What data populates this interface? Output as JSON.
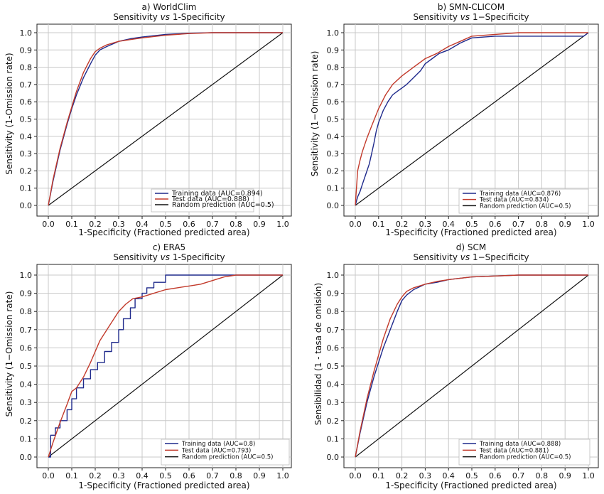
{
  "chart_data": [
    {
      "type": "line",
      "panel": "a",
      "title": "a) WorldClim",
      "subtitle_pre": "Sensitivity ",
      "subtitle_em": "vs",
      "subtitle_post": " 1-Specificity",
      "xlabel": "1-Specificity (Fractioned predicted area)",
      "ylabel": "Sensitivity (1-Omission rate)",
      "xlim": [
        0,
        1
      ],
      "ylim": [
        0,
        1
      ],
      "ticks": [
        "0.0",
        "0.1",
        "0.2",
        "0.3",
        "0.4",
        "0.5",
        "0.6",
        "0.7",
        "0.8",
        "0.9",
        "1.0"
      ],
      "legend_position": "lower-right",
      "series": [
        {
          "name": "Training data (AUC=0.894)",
          "color": "#1f2a8c",
          "x": [
            0,
            0.02,
            0.05,
            0.08,
            0.1,
            0.12,
            0.15,
            0.18,
            0.2,
            0.22,
            0.25,
            0.3,
            0.35,
            0.4,
            0.5,
            0.6,
            0.7,
            0.8,
            1.0
          ],
          "y": [
            0,
            0.14,
            0.32,
            0.47,
            0.56,
            0.64,
            0.74,
            0.82,
            0.87,
            0.9,
            0.92,
            0.95,
            0.965,
            0.975,
            0.99,
            0.997,
            1,
            1,
            1
          ]
        },
        {
          "name": "Test data (AUC=0.888)",
          "color": "#c23a2b",
          "x": [
            0,
            0.02,
            0.05,
            0.08,
            0.1,
            0.12,
            0.15,
            0.18,
            0.2,
            0.22,
            0.25,
            0.3,
            0.35,
            0.4,
            0.5,
            0.6,
            0.7,
            0.8,
            1.0
          ],
          "y": [
            0,
            0.15,
            0.33,
            0.48,
            0.57,
            0.66,
            0.77,
            0.85,
            0.89,
            0.91,
            0.93,
            0.95,
            0.96,
            0.97,
            0.985,
            0.995,
            1,
            1,
            1
          ]
        },
        {
          "name": "Random prediction (AUC=0.5)",
          "color": "#111111",
          "x": [
            0,
            1
          ],
          "y": [
            0,
            1
          ]
        }
      ]
    },
    {
      "type": "line",
      "panel": "b",
      "title": "b) SMN-CLICOM",
      "subtitle_pre": "Sensitivity ",
      "subtitle_em": "vs",
      "subtitle_post": " 1−Specificity",
      "xlabel": "1-Specificity (Fractioned predicted area)",
      "ylabel": "Sensitivity (1−Omission rate)",
      "xlim": [
        0,
        1
      ],
      "ylim": [
        0,
        1
      ],
      "ticks": [
        "0.0",
        "0.1",
        "0.2",
        "0.3",
        "0.4",
        "0.5",
        "0.6",
        "0.7",
        "0.8",
        "0.9",
        "1.0"
      ],
      "legend_position": "lower-right",
      "series": [
        {
          "name": "Training data (AUC=0.876)",
          "color": "#1f2a8c",
          "x": [
            0,
            0.01,
            0.02,
            0.03,
            0.04,
            0.05,
            0.06,
            0.07,
            0.08,
            0.09,
            0.1,
            0.12,
            0.14,
            0.16,
            0.18,
            0.2,
            0.22,
            0.25,
            0.28,
            0.3,
            0.33,
            0.36,
            0.4,
            0.45,
            0.5,
            0.6,
            0.7,
            0.8,
            0.9,
            0.98,
            1.0
          ],
          "y": [
            0,
            0.05,
            0.08,
            0.12,
            0.16,
            0.2,
            0.24,
            0.3,
            0.36,
            0.43,
            0.48,
            0.55,
            0.6,
            0.64,
            0.66,
            0.68,
            0.7,
            0.74,
            0.78,
            0.82,
            0.85,
            0.88,
            0.9,
            0.94,
            0.97,
            0.98,
            0.98,
            0.98,
            0.98,
            0.98,
            1.0
          ]
        },
        {
          "name": "Test data (AUC=0.834)",
          "color": "#c23a2b",
          "x": [
            0,
            0.01,
            0.02,
            0.03,
            0.05,
            0.07,
            0.1,
            0.13,
            0.16,
            0.2,
            0.25,
            0.3,
            0.35,
            0.4,
            0.45,
            0.5,
            0.6,
            0.7,
            0.8,
            1.0
          ],
          "y": [
            0,
            0.2,
            0.26,
            0.31,
            0.39,
            0.46,
            0.56,
            0.64,
            0.7,
            0.75,
            0.8,
            0.85,
            0.88,
            0.92,
            0.95,
            0.98,
            0.99,
            1,
            1,
            1
          ]
        },
        {
          "name": "Random prediction (AUC=0.5)",
          "color": "#111111",
          "x": [
            0,
            1
          ],
          "y": [
            0,
            1
          ]
        }
      ]
    },
    {
      "type": "line",
      "panel": "c",
      "title": "c) ERA5",
      "subtitle_pre": "Sensitivity ",
      "subtitle_em": "vs",
      "subtitle_post": " 1-Specificity",
      "xlabel": "1-Specificity (Fractioned predicted area)",
      "ylabel": "Sensitivity (1−Omission rate)",
      "xlim": [
        0,
        1
      ],
      "ylim": [
        0,
        1
      ],
      "ticks": [
        "0.0",
        "0.1",
        "0.2",
        "0.3",
        "0.4",
        "0.5",
        "0.6",
        "0.7",
        "0.8",
        "0.9",
        "1.0"
      ],
      "legend_position": "lower-right",
      "series": [
        {
          "name": "Training data (AUC=0.8)",
          "color": "#1f2a8c",
          "x": [
            0,
            0.01,
            0.01,
            0.03,
            0.03,
            0.05,
            0.05,
            0.08,
            0.08,
            0.1,
            0.1,
            0.12,
            0.12,
            0.15,
            0.15,
            0.18,
            0.18,
            0.21,
            0.21,
            0.24,
            0.24,
            0.27,
            0.27,
            0.3,
            0.3,
            0.32,
            0.32,
            0.35,
            0.35,
            0.37,
            0.37,
            0.4,
            0.4,
            0.42,
            0.42,
            0.45,
            0.45,
            0.5,
            0.5,
            0.6,
            0.7,
            0.75,
            0.8,
            1.0
          ],
          "y": [
            0,
            0,
            0.12,
            0.12,
            0.16,
            0.16,
            0.2,
            0.2,
            0.26,
            0.26,
            0.32,
            0.32,
            0.38,
            0.38,
            0.43,
            0.43,
            0.48,
            0.48,
            0.52,
            0.52,
            0.58,
            0.58,
            0.63,
            0.63,
            0.7,
            0.7,
            0.76,
            0.76,
            0.82,
            0.82,
            0.87,
            0.87,
            0.9,
            0.9,
            0.93,
            0.93,
            0.96,
            0.96,
            1.0,
            1.0,
            1.0,
            1.0,
            1.0,
            1.0
          ]
        },
        {
          "name": "Test data (AUC=0.793)",
          "color": "#c23a2b",
          "x": [
            0,
            0.02,
            0.05,
            0.08,
            0.1,
            0.12,
            0.15,
            0.18,
            0.2,
            0.22,
            0.25,
            0.28,
            0.3,
            0.33,
            0.36,
            0.4,
            0.45,
            0.5,
            0.55,
            0.6,
            0.65,
            0.7,
            0.75,
            0.8,
            1.0
          ],
          "y": [
            0,
            0.08,
            0.19,
            0.29,
            0.36,
            0.38,
            0.44,
            0.52,
            0.58,
            0.64,
            0.7,
            0.76,
            0.8,
            0.84,
            0.87,
            0.88,
            0.9,
            0.92,
            0.93,
            0.94,
            0.95,
            0.97,
            0.99,
            1.0,
            1.0
          ]
        },
        {
          "name": "Random prediction (AUC=0.5)",
          "color": "#111111",
          "x": [
            0,
            1
          ],
          "y": [
            0,
            1
          ]
        }
      ]
    },
    {
      "type": "line",
      "panel": "d",
      "title": "d) SCM",
      "subtitle_pre": "Sensitivity ",
      "subtitle_em": "vs",
      "subtitle_post": " 1−Specificity",
      "xlabel": "1-Specificity (Fractioned predicted area)",
      "ylabel": "Sensibilidad (1 - tasa de omisión)",
      "xlim": [
        0,
        1
      ],
      "ylim": [
        0,
        1
      ],
      "ticks": [
        "0.0",
        "0.1",
        "0.2",
        "0.3",
        "0.4",
        "0.5",
        "0.6",
        "0.7",
        "0.8",
        "0.9",
        "1.0"
      ],
      "legend_position": "lower-right",
      "series": [
        {
          "name": "Training data (AUC=0.888)",
          "color": "#1f2a8c",
          "x": [
            0,
            0.02,
            0.05,
            0.08,
            0.1,
            0.12,
            0.15,
            0.18,
            0.2,
            0.22,
            0.25,
            0.3,
            0.35,
            0.4,
            0.5,
            0.6,
            0.7,
            0.8,
            1.0
          ],
          "y": [
            0,
            0.13,
            0.3,
            0.44,
            0.52,
            0.6,
            0.7,
            0.8,
            0.86,
            0.89,
            0.92,
            0.95,
            0.96,
            0.975,
            0.99,
            0.995,
            1,
            1,
            1
          ]
        },
        {
          "name": "Test data (AUC=0.881)",
          "color": "#c23a2b",
          "x": [
            0,
            0.02,
            0.05,
            0.08,
            0.1,
            0.12,
            0.15,
            0.18,
            0.2,
            0.22,
            0.25,
            0.3,
            0.35,
            0.4,
            0.5,
            0.6,
            0.7,
            0.8,
            1.0
          ],
          "y": [
            0,
            0.14,
            0.32,
            0.47,
            0.56,
            0.65,
            0.76,
            0.84,
            0.88,
            0.91,
            0.93,
            0.95,
            0.965,
            0.975,
            0.99,
            0.995,
            1,
            1,
            1
          ]
        },
        {
          "name": "Random prediction (AUC=0.5)",
          "color": "#111111",
          "x": [
            0,
            1
          ],
          "y": [
            0,
            1
          ]
        }
      ]
    }
  ]
}
